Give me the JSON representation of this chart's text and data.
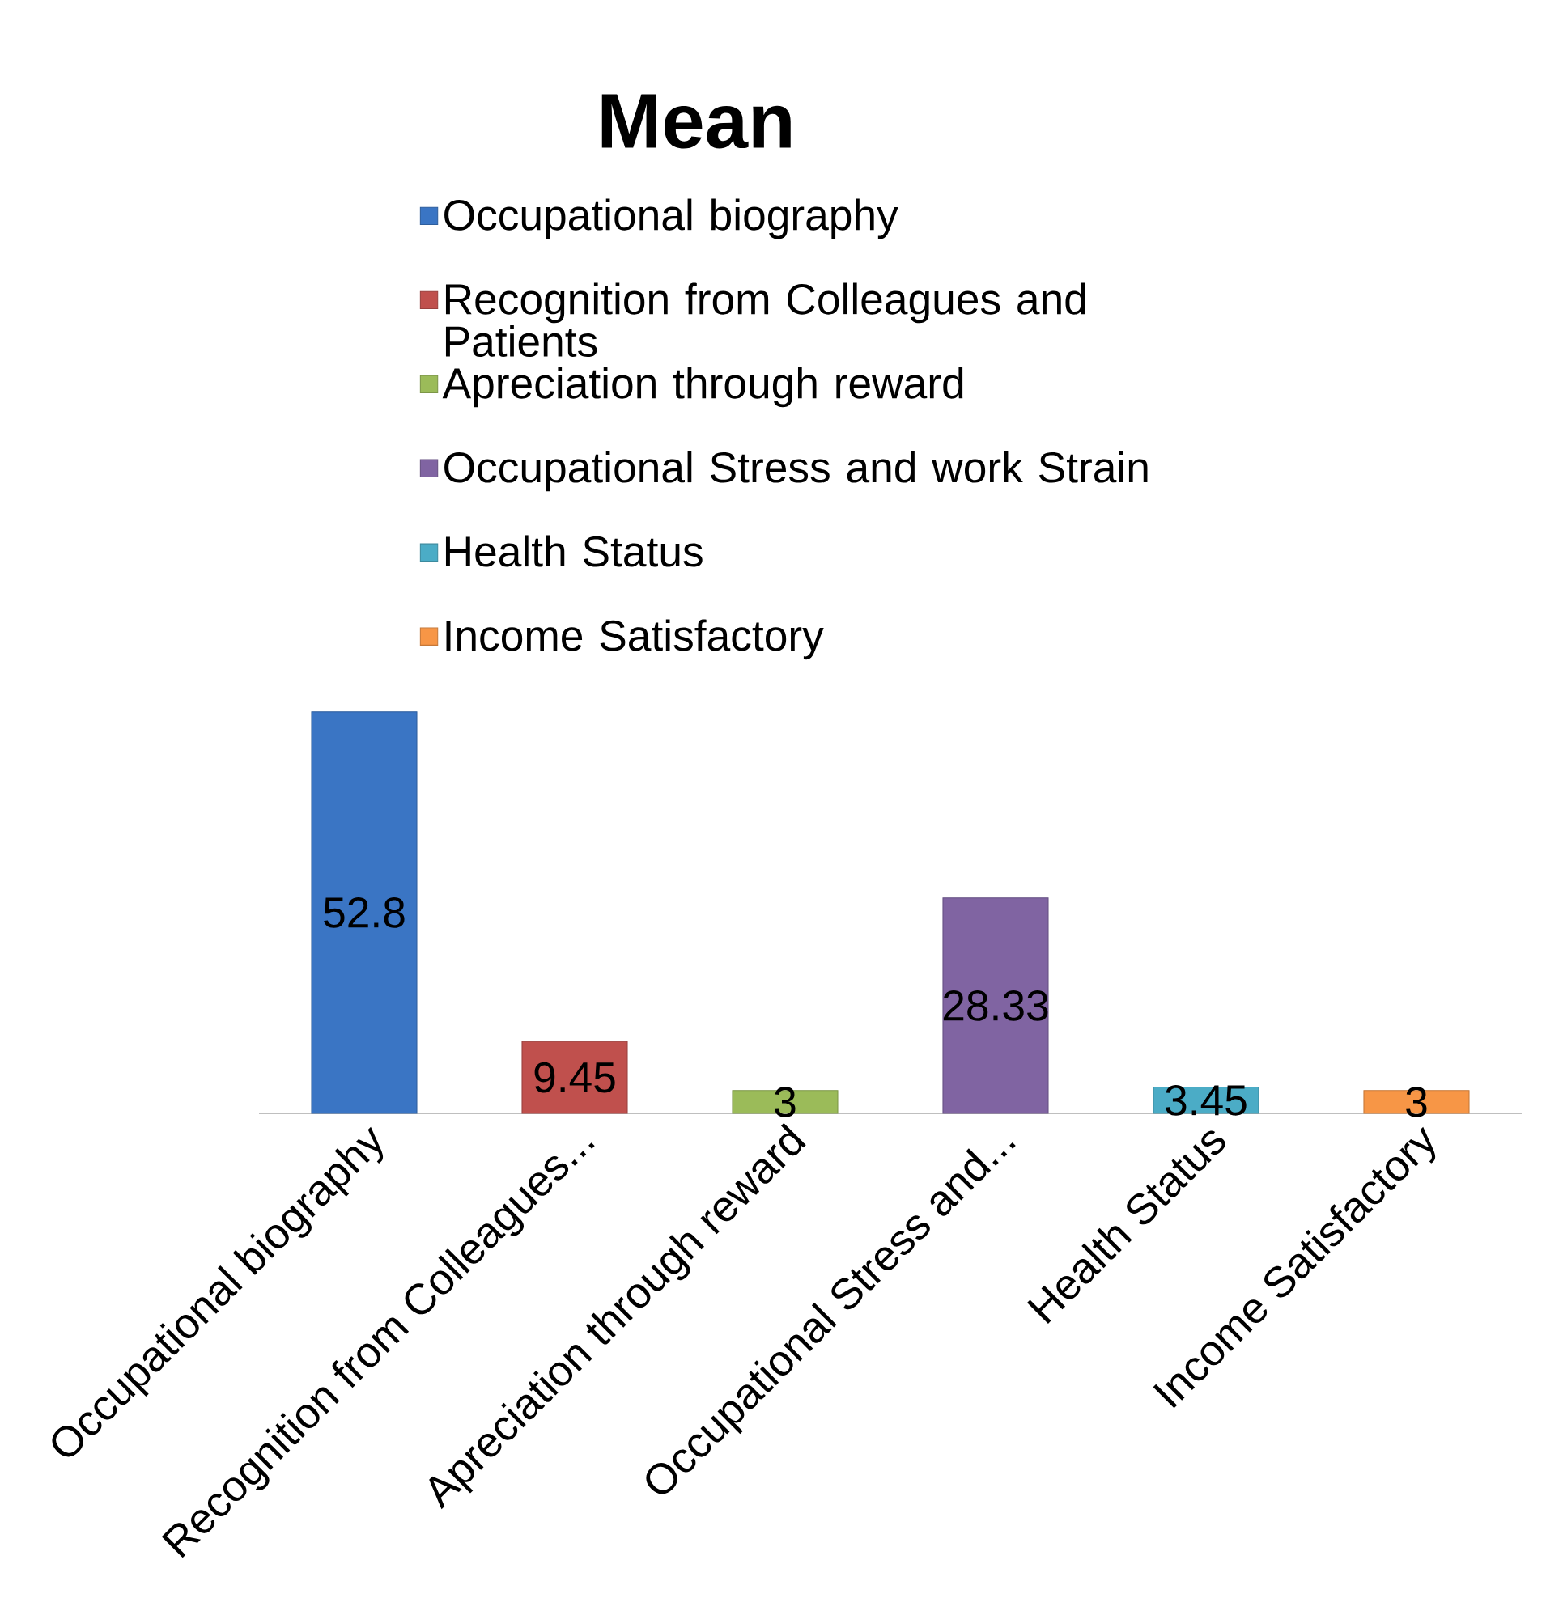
{
  "chart_data": {
    "type": "bar",
    "title": "Mean",
    "categories": [
      "Occupational biography",
      "Recognition from Colleagues...",
      "Apreciation through reward",
      "Occupational Stress and...",
      "Health Status",
      "Income Satisfactory"
    ],
    "series": [
      {
        "name": "Occupational biography",
        "color": "#3a75c4",
        "values": [
          52.8,
          null,
          null,
          null,
          null,
          null
        ]
      },
      {
        "name": "Recognition from Colleagues and Patients",
        "color": "#c0504d",
        "values": [
          null,
          9.45,
          null,
          null,
          null,
          null
        ]
      },
      {
        "name": "Apreciation through reward",
        "color": "#9bbb59",
        "values": [
          null,
          null,
          3,
          null,
          null,
          null
        ]
      },
      {
        "name": "Occupational Stress and work Strain",
        "color": "#8064a2",
        "values": [
          null,
          null,
          null,
          28.33,
          null,
          null
        ]
      },
      {
        "name": "Health Status",
        "color": "#4bacc6",
        "values": [
          null,
          null,
          null,
          null,
          3.45,
          null
        ]
      },
      {
        "name": "Income Satisfactory",
        "color": "#f79646",
        "values": [
          null,
          null,
          null,
          null,
          null,
          3
        ]
      }
    ],
    "data_labels": true,
    "legend": "top"
  }
}
